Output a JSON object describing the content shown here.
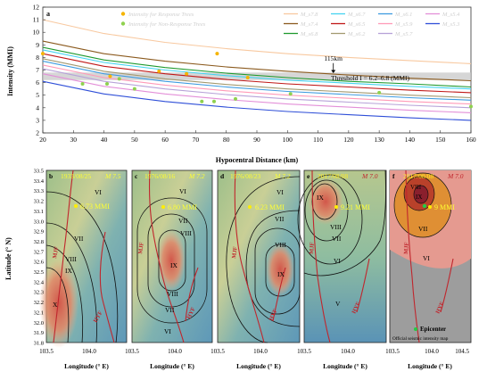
{
  "panel_a": {
    "label": "a",
    "legend_points": [
      {
        "text": "Intensity for Response Trees",
        "color": "#f5b400"
      },
      {
        "text": "Intensity for Non-Response Trees",
        "color": "#8fd14f"
      }
    ],
    "legend_lines": [
      {
        "text": "M_s7.8",
        "color": "#f8c9a0"
      },
      {
        "text": "M_s6.7",
        "color": "#45d3f0"
      },
      {
        "text": "M_s6.1",
        "color": "#3e9be0"
      },
      {
        "text": "M_s5.4",
        "color": "#e38fd8"
      },
      {
        "text": "M_s7.4",
        "color": "#8b5a1e"
      },
      {
        "text": "M_s6.5",
        "color": "#c01818"
      },
      {
        "text": "M_s5.9",
        "color": "#ff9ab8"
      },
      {
        "text": "M_s5.3",
        "color": "#2f4fd8"
      },
      {
        "text": "M_s6.8",
        "color": "#1f9a2f"
      },
      {
        "text": "M_s6.2",
        "color": "#a39a70"
      },
      {
        "text": "M_s5.7",
        "color": "#b7a2d8"
      }
    ],
    "annotation_distance": "115km",
    "threshold_label": "Threshold I = 6.2–6.8 (MMI)",
    "xlabel": "Hypocentral Distance (km)",
    "ylabel": "Intensity (MMI)"
  },
  "maps": {
    "ylabel": "Latitude (° N)",
    "ytick_labels": [
      "33.5",
      "33.4",
      "33.3",
      "33.2",
      "33.1",
      "33.0",
      "32.9",
      "32.8",
      "32.7",
      "32.6",
      "32.5",
      "32.4",
      "32.3",
      "32.2",
      "32.1",
      "32.0",
      "31.9",
      "31.8"
    ],
    "panels": [
      {
        "label": "b",
        "date": "1933/08/25",
        "mag": "M 7.5",
        "mmi": "6.73 MMI",
        "xtick_labels": [
          "103.5",
          "104.0"
        ],
        "xlabel": "Longitude (° E)",
        "zones": [
          "VI",
          "VII",
          "VIII",
          "IX",
          "X"
        ],
        "faults": [
          "MJF",
          "HYF"
        ]
      },
      {
        "label": "c",
        "date": "1976/08/16",
        "mag": "M 7.2",
        "mmi": "6.80 MMI",
        "xtick_labels": [
          "103.5",
          "104.0"
        ],
        "xlabel": "Longitude (° E)",
        "zones": [
          "VI",
          "VII",
          "VIII",
          "IX",
          "VIII",
          "VII",
          "VI"
        ],
        "faults": [
          "MJF",
          "HYF"
        ]
      },
      {
        "label": "d",
        "date": "1976/08/23",
        "mag": "M 7.2",
        "mmi": "6.23 MMI",
        "xtick_labels": [
          "103.5",
          "104.0"
        ],
        "xlabel": "Longitude (° E)",
        "zones": [
          "VI",
          "VII",
          "VIII",
          "IX"
        ],
        "faults": [
          "MJF",
          "HYF"
        ]
      },
      {
        "label": "e",
        "date": "2017/08/08",
        "mag": "M 7.0",
        "mmi": "9.21 MMI",
        "xtick_labels": [
          "103.5",
          "104.0"
        ],
        "xlabel": "Longitude (° E)",
        "zones": [
          "IX",
          "VIII",
          "VII",
          "VI",
          "V"
        ],
        "faults": [
          "MJF",
          "HYF"
        ]
      },
      {
        "label": "f",
        "date": "2017/08/08",
        "mag": "M 7.0",
        "mmi": "9 MMI",
        "xtick_labels": [
          "103.5",
          "104.0",
          "104.5"
        ],
        "xlabel": "Longitude (° E)",
        "zones": [
          "VIII",
          "IX",
          "VII",
          "VI"
        ],
        "faults": [
          "MJF",
          "HYF"
        ],
        "legend_epicenter": "Epicenter",
        "legend_official": "Official seismic intensity map"
      }
    ]
  },
  "chart_data": {
    "type": "line",
    "title": "",
    "xlabel": "Hypocentral Distance (km)",
    "ylabel": "Intensity (MMI)",
    "xlim": [
      20,
      160
    ],
    "ylim": [
      2,
      12
    ],
    "xticks": [
      20,
      30,
      40,
      50,
      60,
      70,
      80,
      90,
      100,
      110,
      120,
      130,
      140,
      150,
      160
    ],
    "yticks": [
      2,
      3,
      4,
      5,
      6,
      7,
      8,
      9,
      10,
      11,
      12
    ],
    "threshold_band": [
      6.2,
      6.8
    ],
    "marker_x": 115,
    "series": [
      {
        "name": "M_s7.8",
        "color": "#f8c9a0",
        "x": [
          20,
          40,
          60,
          80,
          100,
          120,
          140,
          160
        ],
        "values": [
          11.0,
          9.9,
          9.2,
          8.7,
          8.3,
          8.0,
          7.75,
          7.5
        ]
      },
      {
        "name": "M_s7.4",
        "color": "#8b5a1e",
        "x": [
          20,
          40,
          60,
          80,
          100,
          120,
          140,
          160
        ],
        "values": [
          9.3,
          8.3,
          7.7,
          7.25,
          6.9,
          6.6,
          6.35,
          6.15
        ]
      },
      {
        "name": "M_s6.8",
        "color": "#1f9a2f",
        "x": [
          20,
          40,
          60,
          80,
          100,
          120,
          140,
          160
        ],
        "values": [
          8.8,
          7.8,
          7.2,
          6.75,
          6.4,
          6.1,
          5.9,
          5.65
        ]
      },
      {
        "name": "M_s6.7",
        "color": "#45d3f0",
        "x": [
          20,
          40,
          60,
          80,
          100,
          120,
          140,
          160
        ],
        "values": [
          8.6,
          7.6,
          7.0,
          6.55,
          6.2,
          5.95,
          5.7,
          5.5
        ]
      },
      {
        "name": "M_s6.5",
        "color": "#c01818",
        "x": [
          20,
          40,
          60,
          80,
          100,
          120,
          140,
          160
        ],
        "values": [
          8.3,
          7.3,
          6.7,
          6.25,
          5.9,
          5.65,
          5.4,
          5.2
        ]
      },
      {
        "name": "M_s6.2",
        "color": "#a39a70",
        "x": [
          20,
          40,
          60,
          80,
          100,
          120,
          140,
          160
        ],
        "values": [
          7.9,
          6.9,
          6.3,
          5.85,
          5.5,
          5.25,
          5.0,
          4.8
        ]
      },
      {
        "name": "M_s6.1",
        "color": "#3e9be0",
        "x": [
          20,
          40,
          60,
          80,
          100,
          120,
          140,
          160
        ],
        "values": [
          7.7,
          6.7,
          6.1,
          5.65,
          5.3,
          5.05,
          4.8,
          4.6
        ]
      },
      {
        "name": "M_s5.9",
        "color": "#ff9ab8",
        "x": [
          20,
          40,
          60,
          80,
          100,
          120,
          140,
          160
        ],
        "values": [
          7.4,
          6.4,
          5.8,
          5.35,
          5.0,
          4.75,
          4.5,
          4.3
        ]
      },
      {
        "name": "M_s5.7",
        "color": "#b7a2d8",
        "x": [
          20,
          40,
          60,
          80,
          100,
          120,
          140,
          160
        ],
        "values": [
          7.1,
          6.1,
          5.5,
          5.05,
          4.7,
          4.45,
          4.2,
          4.0
        ]
      },
      {
        "name": "M_s5.4",
        "color": "#e38fd8",
        "x": [
          20,
          40,
          60,
          80,
          100,
          120,
          140,
          160
        ],
        "values": [
          6.7,
          5.7,
          5.1,
          4.65,
          4.3,
          4.05,
          3.8,
          3.6
        ]
      },
      {
        "name": "M_s5.3",
        "color": "#2f4fd8",
        "x": [
          20,
          40,
          60,
          80,
          100,
          120,
          140,
          160
        ],
        "values": [
          6.1,
          5.1,
          4.5,
          4.05,
          3.7,
          3.45,
          3.2,
          3.0
        ]
      }
    ],
    "response_points": [
      [
        20,
        8.3
      ],
      [
        42,
        6.5
      ],
      [
        58,
        6.9
      ],
      [
        67,
        6.7
      ],
      [
        77,
        8.3
      ],
      [
        87,
        6.4
      ]
    ],
    "non_response_points": [
      [
        33,
        5.9
      ],
      [
        41,
        5.9
      ],
      [
        45,
        6.3
      ],
      [
        50,
        5.5
      ],
      [
        72,
        4.5
      ],
      [
        76,
        4.5
      ],
      [
        83,
        4.7
      ],
      [
        101,
        5.1
      ],
      [
        130,
        5.2
      ],
      [
        160,
        4.1
      ]
    ]
  }
}
